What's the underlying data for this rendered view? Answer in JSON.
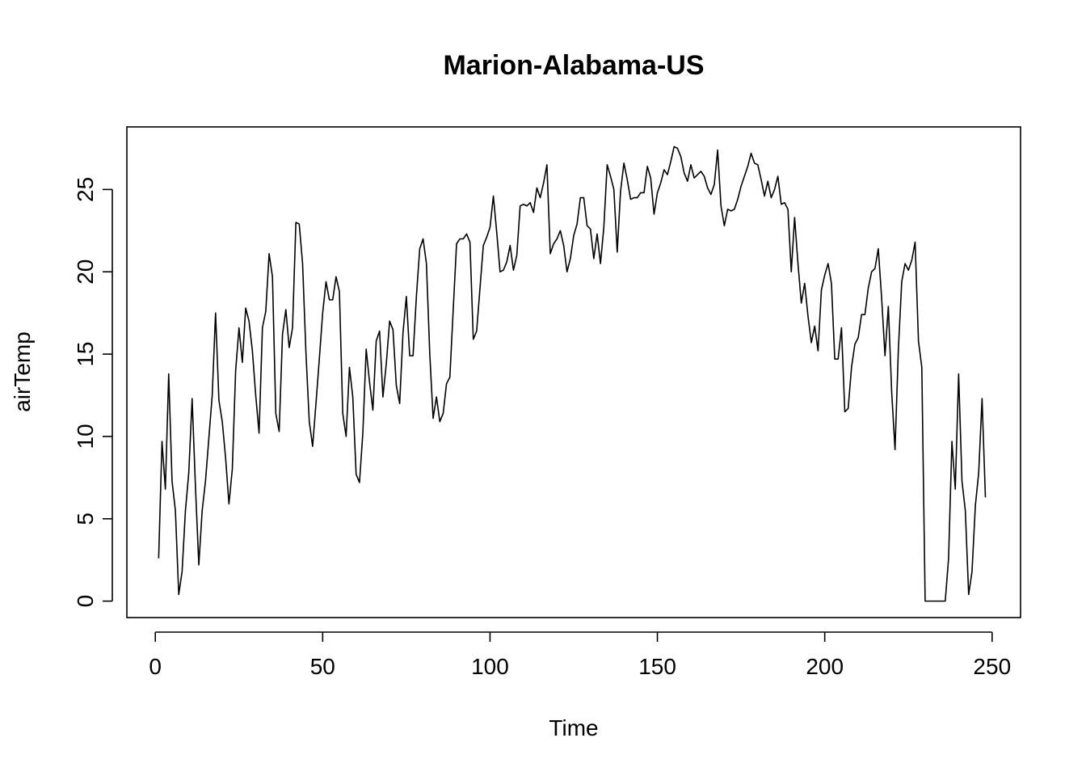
{
  "chart_data": {
    "type": "line",
    "title": "Marion-Alabama-US",
    "xlabel": "Time",
    "ylabel": "airTemp",
    "xlim": [
      -8.5,
      258.5
    ],
    "ylim": [
      -1.0,
      28.8
    ],
    "x_ticks": [
      0,
      50,
      100,
      150,
      200,
      250
    ],
    "y_ticks": [
      0,
      5,
      10,
      15,
      20,
      25
    ],
    "grid": false,
    "legend": "none",
    "series": [
      {
        "color": "#000000",
        "points": [
          [
            1,
            2.6
          ],
          [
            2,
            9.7
          ],
          [
            3,
            6.8
          ],
          [
            4,
            13.8
          ],
          [
            5,
            7.3
          ],
          [
            6,
            5.5
          ],
          [
            7,
            0.4
          ],
          [
            8,
            1.8
          ],
          [
            9,
            5.5
          ],
          [
            10,
            7.8
          ],
          [
            11,
            12.3
          ],
          [
            12,
            6.9
          ],
          [
            13,
            2.2
          ],
          [
            14,
            5.5
          ],
          [
            15,
            7.3
          ],
          [
            16,
            9.9
          ],
          [
            17,
            12.5
          ],
          [
            18,
            17.5
          ],
          [
            19,
            12.2
          ],
          [
            20,
            10.9
          ],
          [
            21,
            8.7
          ],
          [
            22,
            5.9
          ],
          [
            23,
            8.0
          ],
          [
            24,
            14.0
          ],
          [
            25,
            16.6
          ],
          [
            26,
            14.5
          ],
          [
            27,
            17.8
          ],
          [
            28,
            17.0
          ],
          [
            29,
            15.2
          ],
          [
            30,
            12.5
          ],
          [
            31,
            10.2
          ],
          [
            32,
            16.6
          ],
          [
            33,
            17.6
          ],
          [
            34,
            21.1
          ],
          [
            35,
            19.7
          ],
          [
            36,
            11.4
          ],
          [
            37,
            10.3
          ],
          [
            38,
            16.2
          ],
          [
            39,
            17.7
          ],
          [
            40,
            15.4
          ],
          [
            41,
            16.6
          ],
          [
            42,
            23.0
          ],
          [
            43,
            22.9
          ],
          [
            44,
            20.5
          ],
          [
            45,
            15.1
          ],
          [
            46,
            10.9
          ],
          [
            47,
            9.4
          ],
          [
            48,
            12.0
          ],
          [
            49,
            14.7
          ],
          [
            50,
            17.5
          ],
          [
            51,
            19.4
          ],
          [
            52,
            18.3
          ],
          [
            53,
            18.3
          ],
          [
            54,
            19.7
          ],
          [
            55,
            18.8
          ],
          [
            56,
            11.4
          ],
          [
            57,
            10.0
          ],
          [
            58,
            14.2
          ],
          [
            59,
            12.4
          ],
          [
            60,
            7.7
          ],
          [
            61,
            7.2
          ],
          [
            62,
            10.2
          ],
          [
            63,
            15.3
          ],
          [
            64,
            13.3
          ],
          [
            65,
            11.6
          ],
          [
            66,
            15.8
          ],
          [
            67,
            16.4
          ],
          [
            68,
            12.4
          ],
          [
            69,
            14.4
          ],
          [
            70,
            17.0
          ],
          [
            71,
            16.5
          ],
          [
            72,
            13.1
          ],
          [
            73,
            12.0
          ],
          [
            74,
            16.3
          ],
          [
            75,
            18.5
          ],
          [
            76,
            14.9
          ],
          [
            77,
            14.9
          ],
          [
            78,
            18.5
          ],
          [
            79,
            21.4
          ],
          [
            80,
            22.0
          ],
          [
            81,
            20.5
          ],
          [
            82,
            15.0
          ],
          [
            83,
            11.1
          ],
          [
            84,
            12.4
          ],
          [
            85,
            10.9
          ],
          [
            86,
            11.4
          ],
          [
            87,
            13.2
          ],
          [
            88,
            13.6
          ],
          [
            89,
            17.7
          ],
          [
            90,
            21.7
          ],
          [
            91,
            22.0
          ],
          [
            92,
            22.0
          ],
          [
            93,
            22.3
          ],
          [
            94,
            21.8
          ],
          [
            95,
            15.9
          ],
          [
            96,
            16.4
          ],
          [
            97,
            19.0
          ],
          [
            98,
            21.6
          ],
          [
            99,
            22.1
          ],
          [
            100,
            22.7
          ],
          [
            101,
            24.6
          ],
          [
            102,
            22.4
          ],
          [
            103,
            20.0
          ],
          [
            104,
            20.1
          ],
          [
            105,
            20.6
          ],
          [
            106,
            21.6
          ],
          [
            107,
            20.1
          ],
          [
            108,
            21.0
          ],
          [
            109,
            24.0
          ],
          [
            110,
            24.1
          ],
          [
            111,
            24.0
          ],
          [
            112,
            24.2
          ],
          [
            113,
            23.6
          ],
          [
            114,
            25.1
          ],
          [
            115,
            24.5
          ],
          [
            116,
            25.4
          ],
          [
            117,
            26.5
          ],
          [
            118,
            21.1
          ],
          [
            119,
            21.7
          ],
          [
            120,
            22.0
          ],
          [
            121,
            22.5
          ],
          [
            122,
            21.6
          ],
          [
            123,
            20.0
          ],
          [
            124,
            20.8
          ],
          [
            125,
            22.2
          ],
          [
            126,
            22.9
          ],
          [
            127,
            24.5
          ],
          [
            128,
            24.5
          ],
          [
            129,
            22.8
          ],
          [
            130,
            22.6
          ],
          [
            131,
            20.8
          ],
          [
            132,
            22.3
          ],
          [
            133,
            20.5
          ],
          [
            134,
            22.7
          ],
          [
            135,
            26.5
          ],
          [
            136,
            25.8
          ],
          [
            137,
            25.0
          ],
          [
            138,
            21.2
          ],
          [
            139,
            24.9
          ],
          [
            140,
            26.6
          ],
          [
            141,
            25.6
          ],
          [
            142,
            24.4
          ],
          [
            143,
            24.5
          ],
          [
            144,
            24.5
          ],
          [
            145,
            24.8
          ],
          [
            146,
            24.8
          ],
          [
            147,
            26.4
          ],
          [
            148,
            25.7
          ],
          [
            149,
            23.5
          ],
          [
            150,
            24.8
          ],
          [
            151,
            25.4
          ],
          [
            152,
            26.2
          ],
          [
            153,
            25.9
          ],
          [
            154,
            26.7
          ],
          [
            155,
            27.6
          ],
          [
            156,
            27.5
          ],
          [
            157,
            27.0
          ],
          [
            158,
            26.0
          ],
          [
            159,
            25.5
          ],
          [
            160,
            26.5
          ],
          [
            161,
            25.7
          ],
          [
            162,
            25.9
          ],
          [
            163,
            26.1
          ],
          [
            164,
            25.8
          ],
          [
            165,
            25.1
          ],
          [
            166,
            24.7
          ],
          [
            167,
            25.3
          ],
          [
            168,
            27.4
          ],
          [
            169,
            24.0
          ],
          [
            170,
            22.8
          ],
          [
            171,
            23.8
          ],
          [
            172,
            23.7
          ],
          [
            173,
            23.8
          ],
          [
            174,
            24.4
          ],
          [
            175,
            25.2
          ],
          [
            176,
            25.8
          ],
          [
            177,
            26.4
          ],
          [
            178,
            27.2
          ],
          [
            179,
            26.6
          ],
          [
            180,
            26.5
          ],
          [
            181,
            25.6
          ],
          [
            182,
            24.6
          ],
          [
            183,
            25.5
          ],
          [
            184,
            24.5
          ],
          [
            185,
            25.0
          ],
          [
            186,
            25.8
          ],
          [
            187,
            24.1
          ],
          [
            188,
            24.2
          ],
          [
            189,
            23.8
          ],
          [
            190,
            20.0
          ],
          [
            191,
            23.3
          ],
          [
            192,
            20.5
          ],
          [
            193,
            18.1
          ],
          [
            194,
            19.3
          ],
          [
            195,
            17.3
          ],
          [
            196,
            15.7
          ],
          [
            197,
            16.7
          ],
          [
            198,
            15.2
          ],
          [
            199,
            18.9
          ],
          [
            200,
            19.8
          ],
          [
            201,
            20.5
          ],
          [
            202,
            19.3
          ],
          [
            203,
            14.7
          ],
          [
            204,
            14.7
          ],
          [
            205,
            16.6
          ],
          [
            206,
            11.5
          ],
          [
            207,
            11.7
          ],
          [
            208,
            14.2
          ],
          [
            209,
            15.6
          ],
          [
            210,
            16.0
          ],
          [
            211,
            17.4
          ],
          [
            212,
            17.4
          ],
          [
            213,
            19.0
          ],
          [
            214,
            20.0
          ],
          [
            215,
            20.2
          ],
          [
            216,
            21.4
          ],
          [
            217,
            18.4
          ],
          [
            218,
            14.9
          ],
          [
            219,
            17.9
          ],
          [
            220,
            12.7
          ],
          [
            221,
            9.2
          ],
          [
            222,
            15.3
          ],
          [
            223,
            19.4
          ],
          [
            224,
            20.5
          ],
          [
            225,
            20.1
          ],
          [
            226,
            20.7
          ],
          [
            227,
            21.8
          ],
          [
            228,
            15.8
          ],
          [
            229,
            14.2
          ],
          [
            230,
            0.0
          ],
          [
            231,
            0.0
          ],
          [
            232,
            0.0
          ],
          [
            233,
            0.0
          ],
          [
            234,
            0.0
          ],
          [
            235,
            0.0
          ],
          [
            236,
            0.0
          ],
          [
            237,
            2.6
          ],
          [
            238,
            9.7
          ],
          [
            239,
            6.8
          ],
          [
            240,
            13.8
          ],
          [
            241,
            7.3
          ],
          [
            242,
            5.5
          ],
          [
            243,
            0.4
          ],
          [
            244,
            1.8
          ],
          [
            245,
            5.8
          ],
          [
            246,
            7.8
          ],
          [
            247,
            12.3
          ],
          [
            248,
            6.3
          ]
        ]
      }
    ]
  }
}
